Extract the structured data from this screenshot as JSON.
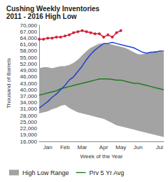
{
  "chart_data": {
    "type": "line",
    "title": "Cushing Weekly Inventories",
    "subtitle": "2011 - 2016 High Low",
    "x_label": "Week of the Year",
    "y_label": "Thousand of Barrels",
    "categories": [
      null,
      null,
      "Jan",
      null,
      null,
      null,
      "Feb",
      null,
      null,
      null,
      "Mar",
      null,
      null,
      null,
      null,
      "Apr",
      null,
      null,
      null,
      "May",
      null,
      null,
      null,
      "Jun",
      null,
      null,
      null,
      null,
      "Jul",
      null
    ],
    "range": {
      "name": "High Low Range",
      "color": "#a3a3a3",
      "high": [
        50000,
        50500,
        50500,
        50000,
        50500,
        51000,
        51000,
        51500,
        52500,
        54000,
        56000,
        58000,
        59500,
        60500,
        61500,
        61500,
        61500,
        61000,
        60500,
        60000,
        59500,
        58500,
        57500,
        56500,
        56500,
        57000,
        57500,
        58000,
        58000,
        57500
      ],
      "low": [
        29000,
        29500,
        30000,
        31000,
        31500,
        32500,
        33000,
        31500,
        30500,
        29500,
        29000,
        28500,
        28000,
        27500,
        27000,
        26500,
        25500,
        24500,
        23500,
        23000,
        22500,
        22000,
        21500,
        21000,
        20500,
        20000,
        19500,
        19000,
        18500,
        18000
      ]
    },
    "series": [
      {
        "name": "Prv 5 Yr Avg",
        "color": "#1f7a1f",
        "line_style": "solid",
        "values": [
          37500,
          38000,
          38500,
          39000,
          39500,
          40500,
          41000,
          41500,
          42000,
          42500,
          43000,
          43500,
          44000,
          44500,
          45000,
          45000,
          45000,
          44800,
          44500,
          44500,
          44000,
          43500,
          43000,
          43000,
          42500,
          42000,
          41500,
          41000,
          40500,
          40000
        ]
      },
      {
        "color": "#1f3fd6",
        "line_style": "solid",
        "values": [
          31500,
          33000,
          34500,
          36500,
          38000,
          40000,
          42000,
          44500,
          46000,
          48500,
          51000,
          54000,
          56500,
          58500,
          60000,
          61500,
          61500,
          62000,
          61500,
          61000,
          60500,
          60000,
          59500,
          58500,
          57500,
          57000,
          57500,
          57500,
          58000,
          58000
        ]
      },
      {
        "color": "#d0223a",
        "line_style": "solid",
        "marker": "circle",
        "values": [
          63500,
          63500,
          64000,
          64000,
          64500,
          64500,
          65000,
          65500,
          66500,
          67000,
          67500,
          67000,
          66500,
          66000,
          66000,
          64500,
          65500,
          64500,
          66500,
          67500,
          null,
          null,
          null,
          null,
          null,
          null,
          null,
          null,
          null,
          null
        ]
      }
    ],
    "ylim": [
      16000,
      70000
    ],
    "yticks": [
      {
        "value": 16000,
        "label": "16,000"
      },
      {
        "value": 19000,
        "label": "19,000"
      },
      {
        "value": 22000,
        "label": "22,000"
      },
      {
        "value": 25000,
        "label": "25,000"
      },
      {
        "value": 28000,
        "label": "28,000"
      },
      {
        "value": 31000,
        "label": "31,000"
      },
      {
        "value": 34000,
        "label": "34,000"
      },
      {
        "value": 37000,
        "label": "37,000"
      },
      {
        "value": 40000,
        "label": "40,000"
      },
      {
        "value": 43000,
        "label": "43,000"
      },
      {
        "value": 46000,
        "label": "46,000"
      },
      {
        "value": 49000,
        "label": "49,000"
      },
      {
        "value": 52000,
        "label": "52,000"
      },
      {
        "value": 55000,
        "label": "55,000"
      },
      {
        "value": 58000,
        "label": "58,000"
      },
      {
        "value": 61000,
        "label": "61,000"
      },
      {
        "value": 64000,
        "label": "64,000"
      },
      {
        "value": 67000,
        "label": "67,000"
      },
      {
        "value": 70000,
        "label": "70,000"
      }
    ],
    "grid": false,
    "legend": "bottom"
  }
}
